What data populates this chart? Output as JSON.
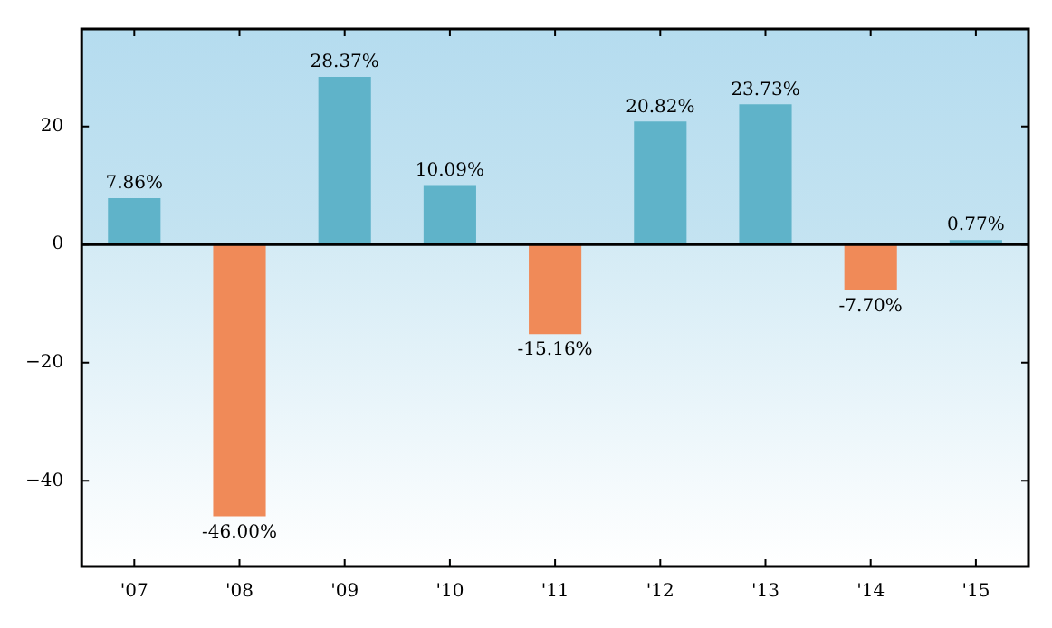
{
  "chart_data": {
    "type": "bar",
    "categories": [
      "'07",
      "'08",
      "'09",
      "'10",
      "'11",
      "'12",
      "'13",
      "'14",
      "'15"
    ],
    "values": [
      7.86,
      -46.0,
      28.37,
      10.09,
      -15.16,
      20.82,
      23.73,
      -7.7,
      0.77
    ],
    "colors": [
      "#5fb3c9",
      "#f08a58",
      "#5fb3c9",
      "#5fb3c9",
      "#f08a58",
      "#5fb3c9",
      "#5fb3c9",
      "#f08a58",
      "#5fb3c9"
    ],
    "value_labels": [
      "7.86%",
      "-46.00%",
      "28.37%",
      "10.09%",
      "-15.16%",
      "20.82%",
      "23.73%",
      "-7.70%",
      "0.77%"
    ],
    "ylim": [
      -54.5,
      36.5
    ],
    "yticks": [
      {
        "value": -40,
        "label": "−40"
      },
      {
        "value": -20,
        "label": "−20"
      },
      0,
      20
    ],
    "ref_lines": [
      {
        "axis": "y",
        "value": 0,
        "color": "#000000"
      }
    ],
    "grid": false,
    "legend": false
  }
}
